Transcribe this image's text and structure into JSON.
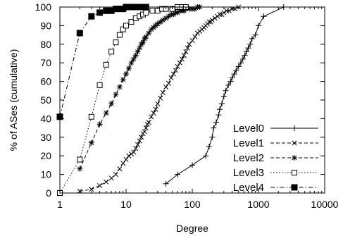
{
  "chart_data": {
    "type": "line",
    "xlabel": "Degree",
    "ylabel": "% of ASes (cumulative)",
    "xscale": "log",
    "xlim": [
      1,
      10000
    ],
    "ylim": [
      0,
      100
    ],
    "x_ticks": [
      {
        "value": 1,
        "label": "1"
      },
      {
        "value": 10,
        "label": "10"
      },
      {
        "value": 100,
        "label": "100"
      },
      {
        "value": 1000,
        "label": "1000"
      },
      {
        "value": 10000,
        "label": "10000"
      }
    ],
    "y_ticks": [
      {
        "value": 0,
        "label": "0"
      },
      {
        "value": 10,
        "label": "10"
      },
      {
        "value": 20,
        "label": "20"
      },
      {
        "value": 30,
        "label": "30"
      },
      {
        "value": 40,
        "label": "40"
      },
      {
        "value": 50,
        "label": "50"
      },
      {
        "value": 60,
        "label": "60"
      },
      {
        "value": 70,
        "label": "70"
      },
      {
        "value": 80,
        "label": "80"
      },
      {
        "value": 90,
        "label": "90"
      },
      {
        "value": 100,
        "label": "100"
      }
    ],
    "grid": false,
    "legend_position": "bottom-right",
    "series": [
      {
        "name": "Level0",
        "marker": "plus",
        "line_style": "solid",
        "x": [
          40,
          60,
          100,
          160,
          180,
          200,
          210,
          230,
          250,
          260,
          280,
          300,
          320,
          350,
          380,
          400,
          430,
          460,
          500,
          540,
          580,
          620,
          660,
          700,
          750,
          800,
          900,
          1000,
          1200,
          2400
        ],
        "y": [
          5,
          10,
          15,
          20,
          25,
          30,
          35,
          38,
          42,
          45,
          48,
          52,
          55,
          58,
          60,
          62,
          64,
          66,
          68,
          70,
          72,
          74,
          76,
          78,
          80,
          83,
          85,
          90,
          95,
          100
        ]
      },
      {
        "name": "Level1",
        "marker": "x",
        "line_style": "dashed",
        "x": [
          2,
          3,
          4,
          5,
          6,
          7,
          8,
          9,
          10,
          11,
          12,
          13,
          14,
          15,
          16,
          17,
          18,
          19,
          20,
          21,
          22,
          24,
          26,
          28,
          30,
          33,
          36,
          40,
          44,
          48,
          52,
          56,
          60,
          65,
          70,
          75,
          80,
          85,
          90,
          100,
          110,
          120,
          130,
          140,
          150,
          160,
          170,
          180,
          190,
          200,
          220,
          240,
          260,
          280,
          300,
          330,
          360,
          400,
          440,
          500
        ],
        "y": [
          1,
          2,
          4,
          6,
          8,
          10,
          13,
          16,
          18,
          20,
          21,
          22,
          24,
          26,
          28,
          30,
          32,
          33,
          35,
          37,
          38,
          41,
          43,
          45,
          48,
          51,
          54,
          57,
          59,
          62,
          64,
          66,
          68,
          70,
          72,
          74,
          76,
          78,
          80,
          82,
          84,
          86,
          87,
          88,
          89,
          90,
          91,
          92,
          92,
          93,
          94,
          95,
          96,
          96,
          97,
          98,
          98,
          99,
          99,
          100
        ]
      },
      {
        "name": "Level2",
        "marker": "star",
        "line_style": "dashed",
        "x": [
          2,
          3,
          4,
          5,
          6,
          7,
          8,
          9,
          10,
          11,
          12,
          13,
          14,
          15,
          16,
          17,
          18,
          19,
          20,
          22,
          24,
          26,
          28,
          30,
          33,
          36,
          40,
          44,
          48,
          52,
          56,
          60,
          65,
          70,
          75,
          80,
          90,
          100,
          110,
          120,
          130
        ],
        "y": [
          13,
          27,
          37,
          43,
          48,
          53,
          57,
          61,
          64,
          67,
          70,
          72,
          74,
          76,
          78,
          80,
          81,
          83,
          84,
          86,
          88,
          89,
          90,
          91,
          92,
          93,
          94,
          95,
          96,
          96,
          97,
          97,
          98,
          98,
          98,
          99,
          99,
          99,
          99,
          100,
          100
        ]
      },
      {
        "name": "Level3",
        "marker": "square",
        "line_style": "dotted",
        "x": [
          1,
          2,
          3,
          4,
          5,
          6,
          7,
          8,
          9,
          10,
          12,
          14,
          16,
          18,
          20,
          25,
          30,
          35,
          40,
          50,
          60,
          70,
          80
        ],
        "y": [
          0,
          18,
          41,
          58,
          69,
          76,
          81,
          85,
          88,
          90,
          92,
          94,
          95,
          96,
          97,
          98,
          98,
          99,
          99,
          99,
          100,
          100,
          100
        ]
      },
      {
        "name": "Level4",
        "marker": "filled-square",
        "line_style": "dash-dot",
        "x": [
          1,
          2,
          3,
          4,
          5,
          6,
          7,
          8,
          9,
          10,
          12,
          14,
          16,
          18,
          20
        ],
        "y": [
          41,
          86,
          95,
          97,
          98,
          98,
          99,
          99,
          99,
          100,
          100,
          100,
          100,
          100,
          100
        ]
      }
    ]
  }
}
